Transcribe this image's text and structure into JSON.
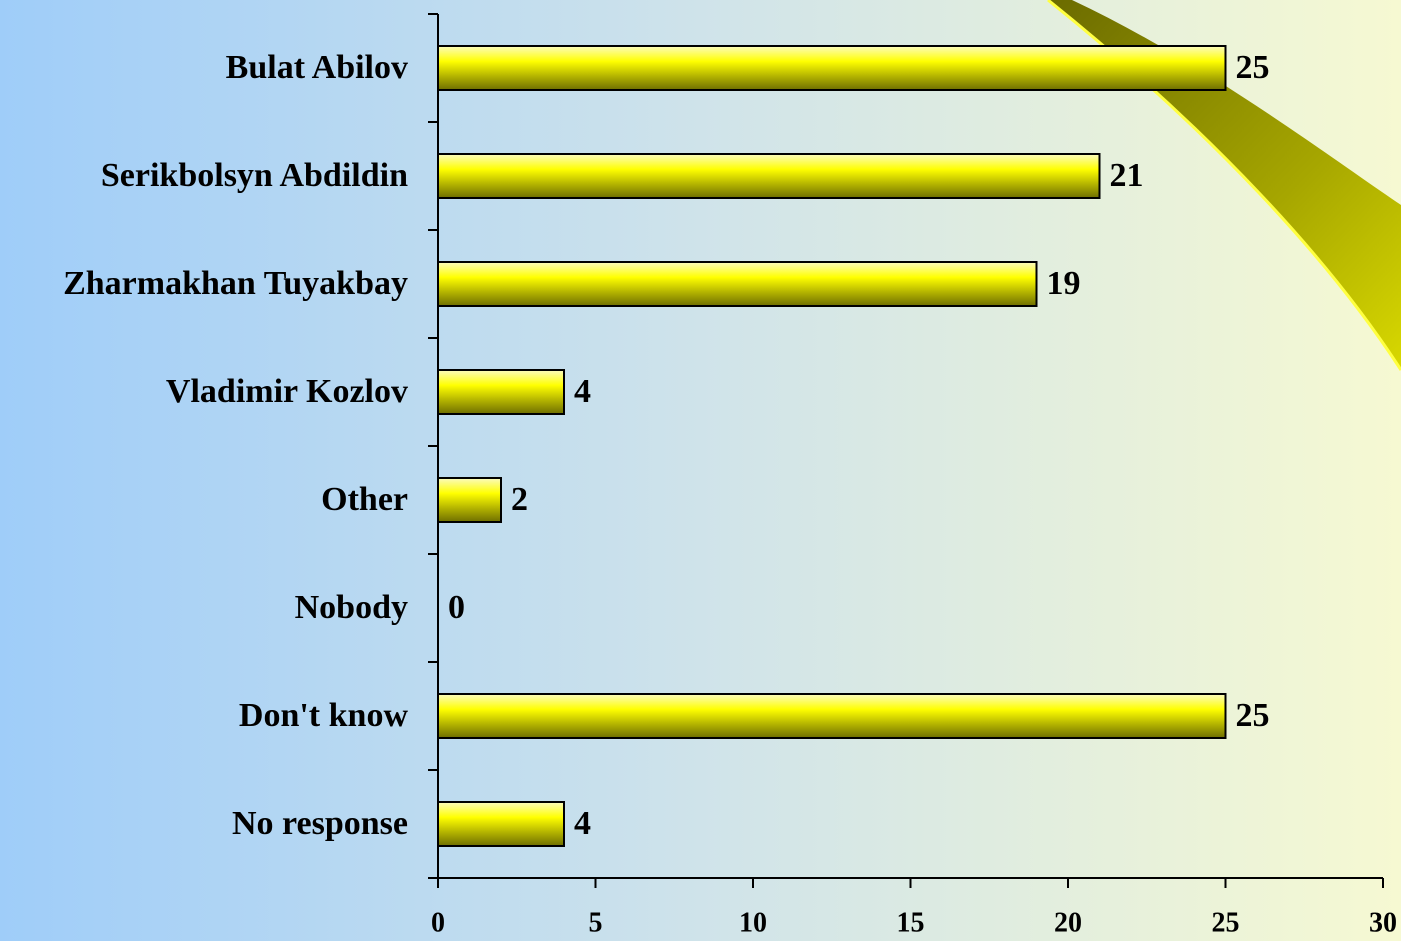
{
  "chart_data": {
    "type": "bar",
    "orientation": "horizontal",
    "categories": [
      "Bulat Abilov",
      "Serikbolsyn Abdildin",
      "Zharmakhan Tuyakbay",
      "Vladimir Kozlov",
      "Other",
      "Nobody",
      "Don't know",
      "No response"
    ],
    "values": [
      25,
      21,
      19,
      4,
      2,
      0,
      25,
      4
    ],
    "color": "#ffff00",
    "xlim": [
      0,
      30
    ],
    "xticks": [
      0,
      5,
      10,
      15,
      20,
      25,
      30
    ]
  }
}
